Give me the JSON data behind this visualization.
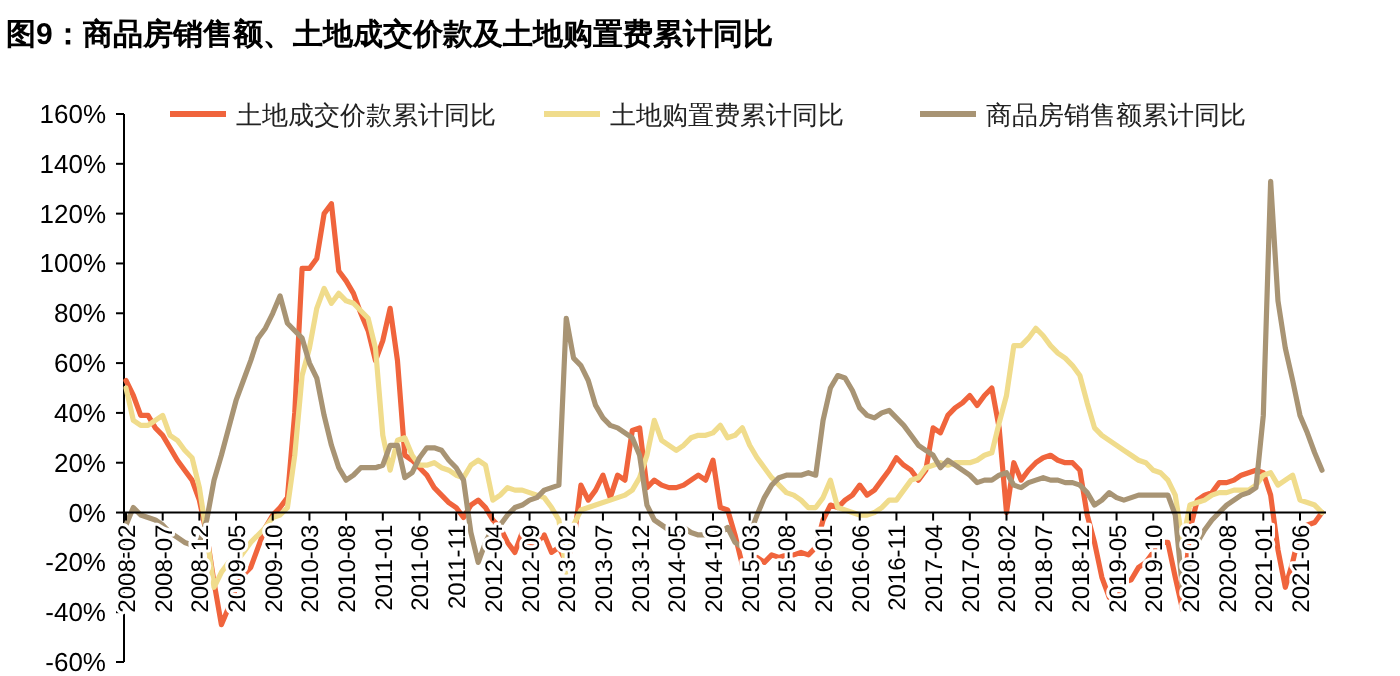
{
  "chart_data": {
    "type": "line",
    "title": "图9：商品房销售额、土地成交价款及土地购置费累计同比",
    "categories": [
      "2008-02",
      null,
      null,
      null,
      null,
      "2008-07",
      null,
      null,
      null,
      null,
      "2008-12",
      null,
      null,
      null,
      null,
      "2009-05",
      null,
      null,
      null,
      null,
      "2009-10",
      null,
      null,
      null,
      null,
      "2010-03",
      null,
      null,
      null,
      null,
      "2010-08",
      null,
      null,
      null,
      null,
      "2011-01",
      null,
      null,
      null,
      null,
      "2011-06",
      null,
      null,
      null,
      null,
      "2011-11",
      null,
      null,
      null,
      null,
      "2012-04",
      null,
      null,
      null,
      null,
      "2012-09",
      null,
      null,
      null,
      null,
      "2013-02",
      null,
      null,
      null,
      null,
      "2013-07",
      null,
      null,
      null,
      null,
      "2013-12",
      null,
      null,
      null,
      null,
      "2014-05",
      null,
      null,
      null,
      null,
      "2014-10",
      null,
      null,
      null,
      null,
      "2015-03",
      null,
      null,
      null,
      null,
      "2015-08",
      null,
      null,
      null,
      null,
      "2016-01",
      null,
      null,
      null,
      null,
      "2016-06",
      null,
      null,
      null,
      null,
      "2016-11",
      null,
      null,
      null,
      null,
      "2017-04",
      null,
      null,
      null,
      null,
      "2017-09",
      null,
      null,
      null,
      null,
      "2018-02",
      null,
      null,
      null,
      null,
      "2018-07",
      null,
      null,
      null,
      null,
      "2018-12",
      null,
      null,
      null,
      null,
      "2019-05",
      null,
      null,
      null,
      null,
      "2019-10",
      null,
      null,
      null,
      null,
      "2020-03",
      null,
      null,
      null,
      null,
      "2020-08",
      null,
      null,
      null,
      null,
      "2021-01",
      null,
      null,
      null,
      null,
      "2021-06",
      null,
      null,
      null
    ],
    "series": [
      {
        "name": "土地成交价款累计同比",
        "color": "#f0643c",
        "values": [
          53,
          47,
          39,
          39,
          34,
          31,
          26,
          21,
          17,
          13,
          5,
          -9,
          -28,
          -45,
          -38,
          -30,
          -25,
          -22,
          -14,
          -6,
          -1,
          2,
          6,
          40,
          98,
          98,
          102,
          120,
          124,
          97,
          93,
          88,
          80,
          73,
          61,
          69,
          82,
          61,
          23,
          21,
          18,
          15,
          10,
          7,
          4,
          2,
          -2,
          3,
          5,
          2,
          -3,
          -6,
          -12,
          -16,
          -8,
          -14,
          -12,
          -9,
          -16,
          -14,
          -20,
          -12,
          11,
          5,
          9,
          15,
          6,
          15,
          13,
          33,
          34,
          10,
          13,
          11,
          10,
          10,
          11,
          13,
          15,
          13,
          21,
          2,
          1,
          -9,
          -21,
          -20,
          -18,
          -20,
          -17,
          -18,
          -17,
          -17,
          -16,
          -17,
          -14,
          -3,
          3,
          2,
          5,
          7,
          11,
          7,
          9,
          13,
          17,
          22,
          19,
          17,
          13,
          17,
          34,
          32,
          39,
          42,
          44,
          47,
          43,
          47,
          50,
          34,
          0,
          20,
          13,
          17,
          20,
          22,
          23,
          21,
          20,
          20,
          17,
          -1,
          -12,
          -26,
          -34,
          -36,
          -28,
          -27,
          -22,
          -20,
          -16,
          -12,
          -12,
          -26,
          -39,
          -7,
          5,
          7,
          8,
          12,
          12,
          13,
          15,
          16,
          17,
          16,
          7,
          -15,
          -30,
          -20,
          -7,
          -5,
          -4,
          0
        ]
      },
      {
        "name": "土地购置费累计同比",
        "color": "#f0dc8c",
        "values": [
          50,
          37,
          35,
          35,
          37,
          39,
          31,
          29,
          25,
          22,
          10,
          -9,
          -30,
          -24,
          -20,
          -20,
          -16,
          -12,
          -9,
          -6,
          -2,
          -1,
          2,
          23,
          55,
          66,
          82,
          90,
          84,
          88,
          85,
          84,
          81,
          78,
          66,
          31,
          17,
          29,
          30,
          23,
          19,
          19,
          20,
          18,
          17,
          15,
          14,
          19,
          21,
          19,
          5,
          7,
          10,
          9,
          9,
          8,
          7,
          6,
          2,
          -3,
          -24,
          -5,
          1,
          2,
          3,
          4,
          5,
          6,
          7,
          9,
          14,
          23,
          37,
          29,
          27,
          25,
          27,
          30,
          31,
          31,
          32,
          35,
          30,
          31,
          34,
          27,
          22,
          18,
          14,
          11,
          8,
          7,
          5,
          2,
          2,
          6,
          13,
          2,
          1,
          0,
          -1,
          -1,
          0,
          2,
          5,
          5,
          9,
          13,
          14,
          18,
          19,
          20,
          19,
          20,
          20,
          20,
          21,
          23,
          24,
          36,
          47,
          67,
          67,
          70,
          74,
          71,
          67,
          64,
          62,
          59,
          55,
          44,
          34,
          31,
          29,
          27,
          25,
          23,
          21,
          20,
          17,
          16,
          13,
          7,
          -12,
          3,
          4,
          5,
          7,
          8,
          8,
          9,
          9,
          9,
          11,
          15,
          16,
          11,
          13,
          15,
          5,
          4,
          3,
          0
        ]
      },
      {
        "name": "商品房销售额累计同比",
        "color": "#a89474",
        "values": [
          -5,
          2,
          -1,
          -2,
          -3,
          -5,
          -8,
          -10,
          -12,
          -13,
          -12,
          -3,
          13,
          23,
          34,
          45,
          53,
          61,
          70,
          74,
          80,
          87,
          76,
          73,
          70,
          60,
          54,
          39,
          27,
          18,
          13,
          15,
          18,
          18,
          18,
          19,
          27,
          27,
          14,
          16,
          22,
          26,
          26,
          25,
          21,
          18,
          13,
          -8,
          -20,
          -12,
          -6,
          -5,
          -1,
          2,
          3,
          5,
          6,
          9,
          10,
          11,
          78,
          62,
          59,
          53,
          43,
          38,
          35,
          34,
          32,
          30,
          23,
          3,
          -3,
          -5,
          -7,
          -8,
          -6,
          -8,
          -9,
          -9,
          -9,
          -8,
          -6,
          -12,
          -14,
          -9,
          -1,
          6,
          11,
          14,
          15,
          15,
          15,
          16,
          15,
          37,
          50,
          55,
          54,
          49,
          42,
          39,
          38,
          40,
          41,
          38,
          35,
          31,
          27,
          25,
          23,
          18,
          21,
          19,
          17,
          15,
          12,
          13,
          13,
          15,
          16,
          11,
          10,
          12,
          13,
          14,
          13,
          13,
          12,
          12,
          11,
          8,
          3,
          5,
          8,
          6,
          5,
          6,
          7,
          7,
          7,
          7,
          7,
          -1,
          -31,
          -20,
          -12,
          -7,
          -3,
          0,
          3,
          5,
          7,
          8,
          10,
          39,
          133,
          85,
          66,
          53,
          39,
          32,
          24,
          17
        ]
      }
    ],
    "ylim": [
      -60,
      160
    ],
    "yticks": [
      {
        "value": -60,
        "label": "-60%"
      },
      {
        "value": -40,
        "label": "-40%"
      },
      {
        "value": -20,
        "label": "-20%"
      },
      {
        "value": 0,
        "label": "0%"
      },
      {
        "value": 20,
        "label": "20%"
      },
      {
        "value": 40,
        "label": "40%"
      },
      {
        "value": 60,
        "label": "60%"
      },
      {
        "value": 80,
        "label": "80%"
      },
      {
        "value": 100,
        "label": "100%"
      },
      {
        "value": 120,
        "label": "120%"
      },
      {
        "value": 140,
        "label": "140%"
      },
      {
        "value": 160,
        "label": "160%"
      }
    ],
    "legend": "top"
  }
}
